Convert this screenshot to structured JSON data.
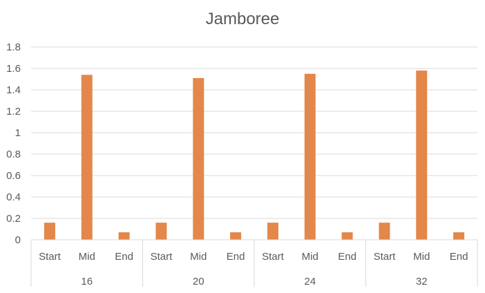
{
  "chart_data": {
    "type": "bar",
    "title": "Jamboree",
    "xlabel": "",
    "ylabel": "",
    "ylim": [
      0,
      1.8
    ],
    "yticks": [
      "0",
      "0.2",
      "0.4",
      "0.6",
      "0.8",
      "1",
      "1.2",
      "1.4",
      "1.6",
      "1.8"
    ],
    "grid": true,
    "bar_color": "#E3874A",
    "groups": [
      {
        "label": "16",
        "categories": [
          "Start",
          "Mid",
          "End"
        ],
        "values": [
          0.16,
          1.54,
          0.07
        ]
      },
      {
        "label": "20",
        "categories": [
          "Start",
          "Mid",
          "End"
        ],
        "values": [
          0.16,
          1.51,
          0.07
        ]
      },
      {
        "label": "24",
        "categories": [
          "Start",
          "Mid",
          "End"
        ],
        "values": [
          0.16,
          1.55,
          0.07
        ]
      },
      {
        "label": "32",
        "categories": [
          "Start",
          "Mid",
          "End"
        ],
        "values": [
          0.16,
          1.58,
          0.07
        ]
      }
    ]
  }
}
